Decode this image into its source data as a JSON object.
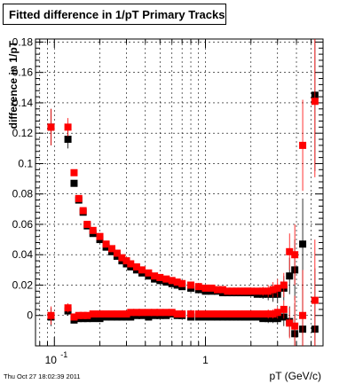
{
  "chart_data": {
    "type": "scatter",
    "title": "Fitted difference in 1/pT  Primary Tracks",
    "xlabel": "pT (GeV/c)",
    "ylabel": "difference in 1/pT",
    "x_scale": "log",
    "xlim": [
      0.075,
      6.0
    ],
    "ylim": [
      -0.02,
      0.182
    ],
    "x_tick_labels": [
      {
        "value": 0.1,
        "base": "10",
        "exp": "-1"
      },
      {
        "value": 1,
        "base": "1",
        "exp": ""
      }
    ],
    "y_ticks": [
      0,
      0.02,
      0.04,
      0.06,
      0.08,
      0.1,
      0.12,
      0.14,
      0.16,
      0.18
    ],
    "y_tick_labels": [
      "0",
      "0.02",
      "0.04",
      "0.06",
      "0.08",
      "0.1",
      "0.12",
      "0.14",
      "0.16",
      "0.18"
    ],
    "grid": true,
    "colors": {
      "series_black": "#000000",
      "series_red": "#ff0000"
    },
    "series": [
      {
        "color": "#000000",
        "x": [
          0.095,
          0.123,
          0.135,
          0.145,
          0.155,
          0.165,
          0.18,
          0.2,
          0.22,
          0.24,
          0.26,
          0.28,
          0.3,
          0.32,
          0.35,
          0.38,
          0.42,
          0.46,
          0.5,
          0.55,
          0.6,
          0.65,
          0.7,
          0.8,
          0.9,
          1.0,
          1.1,
          1.2,
          1.3,
          1.4,
          1.5,
          1.6,
          1.7,
          1.8,
          1.9,
          2.0,
          2.2,
          2.4,
          2.6,
          2.8,
          3.0,
          3.3,
          3.6,
          3.9,
          4.4,
          5.3
        ],
        "y": [
          0.124,
          0.116,
          0.087,
          0.076,
          0.068,
          0.059,
          0.054,
          0.05,
          0.045,
          0.042,
          0.039,
          0.036,
          0.034,
          0.032,
          0.03,
          0.028,
          0.026,
          0.024,
          0.023,
          0.022,
          0.021,
          0.02,
          0.019,
          0.018,
          0.017,
          0.016,
          0.016,
          0.016,
          0.015,
          0.015,
          0.015,
          0.015,
          0.015,
          0.015,
          0.015,
          0.015,
          0.014,
          0.014,
          0.014,
          0.014,
          0.014,
          0.018,
          0.026,
          0.03,
          0.047,
          0.145
        ],
        "yerr": [
          0.012,
          0.006,
          0.002,
          0.002,
          0.001,
          0.001,
          0.001,
          0.001,
          0.001,
          0.001,
          0.001,
          0.001,
          0.001,
          0.001,
          0.001,
          0.001,
          0.001,
          0.001,
          0.001,
          0.001,
          0.001,
          0.001,
          0.001,
          0.001,
          0.001,
          0.001,
          0.001,
          0.001,
          0.001,
          0.001,
          0.001,
          0.001,
          0.002,
          0.002,
          0.002,
          0.002,
          0.002,
          0.003,
          0.004,
          0.005,
          0.006,
          0.008,
          0.012,
          0.02,
          0.03,
          0.05
        ]
      },
      {
        "color": "#ff0000",
        "x": [
          0.095,
          0.123,
          0.135,
          0.145,
          0.155,
          0.165,
          0.18,
          0.2,
          0.22,
          0.24,
          0.26,
          0.28,
          0.3,
          0.32,
          0.35,
          0.38,
          0.42,
          0.46,
          0.5,
          0.55,
          0.6,
          0.65,
          0.7,
          0.8,
          0.9,
          1.0,
          1.1,
          1.2,
          1.3,
          1.4,
          1.5,
          1.6,
          1.7,
          1.8,
          1.9,
          2.0,
          2.2,
          2.4,
          2.6,
          2.8,
          3.0,
          3.3,
          3.6,
          3.9,
          4.4,
          5.3
        ],
        "y": [
          0.124,
          0.124,
          0.094,
          0.077,
          0.069,
          0.06,
          0.056,
          0.052,
          0.047,
          0.044,
          0.041,
          0.038,
          0.036,
          0.034,
          0.032,
          0.03,
          0.028,
          0.026,
          0.025,
          0.024,
          0.023,
          0.022,
          0.021,
          0.02,
          0.019,
          0.018,
          0.018,
          0.017,
          0.017,
          0.016,
          0.016,
          0.016,
          0.016,
          0.016,
          0.016,
          0.016,
          0.016,
          0.016,
          0.016,
          0.017,
          0.018,
          0.02,
          0.042,
          0.04,
          0.112,
          0.141
        ],
        "yerr": [
          0.012,
          0.006,
          0.002,
          0.002,
          0.001,
          0.001,
          0.001,
          0.001,
          0.001,
          0.001,
          0.001,
          0.001,
          0.001,
          0.001,
          0.001,
          0.001,
          0.001,
          0.001,
          0.001,
          0.001,
          0.001,
          0.001,
          0.001,
          0.001,
          0.001,
          0.001,
          0.001,
          0.001,
          0.001,
          0.001,
          0.001,
          0.001,
          0.002,
          0.002,
          0.002,
          0.002,
          0.002,
          0.003,
          0.004,
          0.005,
          0.006,
          0.008,
          0.012,
          0.02,
          0.03,
          0.05
        ]
      },
      {
        "color": "#000000",
        "x": [
          0.095,
          0.123,
          0.135,
          0.145,
          0.155,
          0.165,
          0.18,
          0.2,
          0.22,
          0.24,
          0.26,
          0.28,
          0.3,
          0.32,
          0.35,
          0.38,
          0.42,
          0.46,
          0.5,
          0.55,
          0.6,
          0.65,
          0.7,
          0.8,
          0.9,
          1.0,
          1.1,
          1.2,
          1.3,
          1.4,
          1.5,
          1.6,
          1.7,
          1.8,
          1.9,
          2.0,
          2.2,
          2.4,
          2.6,
          2.8,
          3.0,
          3.3,
          3.6,
          3.9,
          4.4,
          5.3
        ],
        "y": [
          -0.001,
          0.003,
          -0.003,
          -0.002,
          -0.002,
          -0.002,
          -0.002,
          -0.002,
          -0.001,
          -0.001,
          -0.001,
          -0.001,
          -0.001,
          -0.001,
          0.0,
          0.0,
          -0.001,
          0.0,
          0.0,
          0.0,
          0.001,
          0.0,
          0.0,
          -0.001,
          -0.001,
          -0.001,
          -0.001,
          -0.001,
          -0.001,
          -0.001,
          -0.001,
          -0.001,
          -0.001,
          -0.001,
          -0.001,
          -0.001,
          -0.001,
          -0.002,
          -0.002,
          -0.002,
          -0.002,
          -0.001,
          -0.004,
          -0.012,
          -0.009,
          -0.009
        ],
        "yerr": [
          0.006,
          0.003,
          0.001,
          0.001,
          0.001,
          0.001,
          0.001,
          0.001,
          0.001,
          0.001,
          0.001,
          0.001,
          0.001,
          0.001,
          0.001,
          0.001,
          0.001,
          0.001,
          0.001,
          0.001,
          0.001,
          0.001,
          0.001,
          0.001,
          0.001,
          0.001,
          0.001,
          0.001,
          0.001,
          0.001,
          0.001,
          0.001,
          0.001,
          0.001,
          0.001,
          0.001,
          0.002,
          0.002,
          0.003,
          0.003,
          0.004,
          0.006,
          0.01,
          0.02,
          0.03,
          0.04
        ]
      },
      {
        "color": "#ff0000",
        "x": [
          0.095,
          0.123,
          0.135,
          0.145,
          0.155,
          0.165,
          0.18,
          0.2,
          0.22,
          0.24,
          0.26,
          0.28,
          0.3,
          0.32,
          0.35,
          0.38,
          0.42,
          0.46,
          0.5,
          0.55,
          0.6,
          0.65,
          0.7,
          0.8,
          0.9,
          1.0,
          1.1,
          1.2,
          1.3,
          1.4,
          1.5,
          1.6,
          1.7,
          1.8,
          1.9,
          2.0,
          2.2,
          2.4,
          2.6,
          2.8,
          3.0,
          3.3,
          3.6,
          3.9,
          4.4,
          5.3
        ],
        "y": [
          0.0,
          0.005,
          -0.001,
          0.0,
          0.0,
          0.0,
          0.001,
          0.001,
          0.001,
          0.001,
          0.001,
          0.001,
          0.001,
          0.002,
          0.002,
          0.002,
          0.002,
          0.002,
          0.002,
          0.002,
          0.002,
          0.001,
          0.001,
          0.001,
          0.001,
          0.001,
          0.001,
          0.001,
          0.001,
          0.001,
          0.001,
          0.001,
          0.001,
          0.001,
          0.001,
          0.001,
          0.001,
          0.001,
          0.001,
          0.001,
          0.002,
          0.004,
          -0.005,
          -0.007,
          0.0,
          0.01
        ],
        "yerr": [
          0.006,
          0.003,
          0.001,
          0.001,
          0.001,
          0.001,
          0.001,
          0.001,
          0.001,
          0.001,
          0.001,
          0.001,
          0.001,
          0.001,
          0.001,
          0.001,
          0.001,
          0.001,
          0.001,
          0.001,
          0.001,
          0.001,
          0.001,
          0.001,
          0.001,
          0.001,
          0.001,
          0.001,
          0.001,
          0.001,
          0.001,
          0.001,
          0.001,
          0.001,
          0.001,
          0.001,
          0.002,
          0.002,
          0.003,
          0.003,
          0.004,
          0.006,
          0.01,
          0.02,
          0.03,
          0.04
        ]
      }
    ]
  },
  "footer": {
    "timestamp": "Thu Oct 27 18:02:39 2011"
  }
}
